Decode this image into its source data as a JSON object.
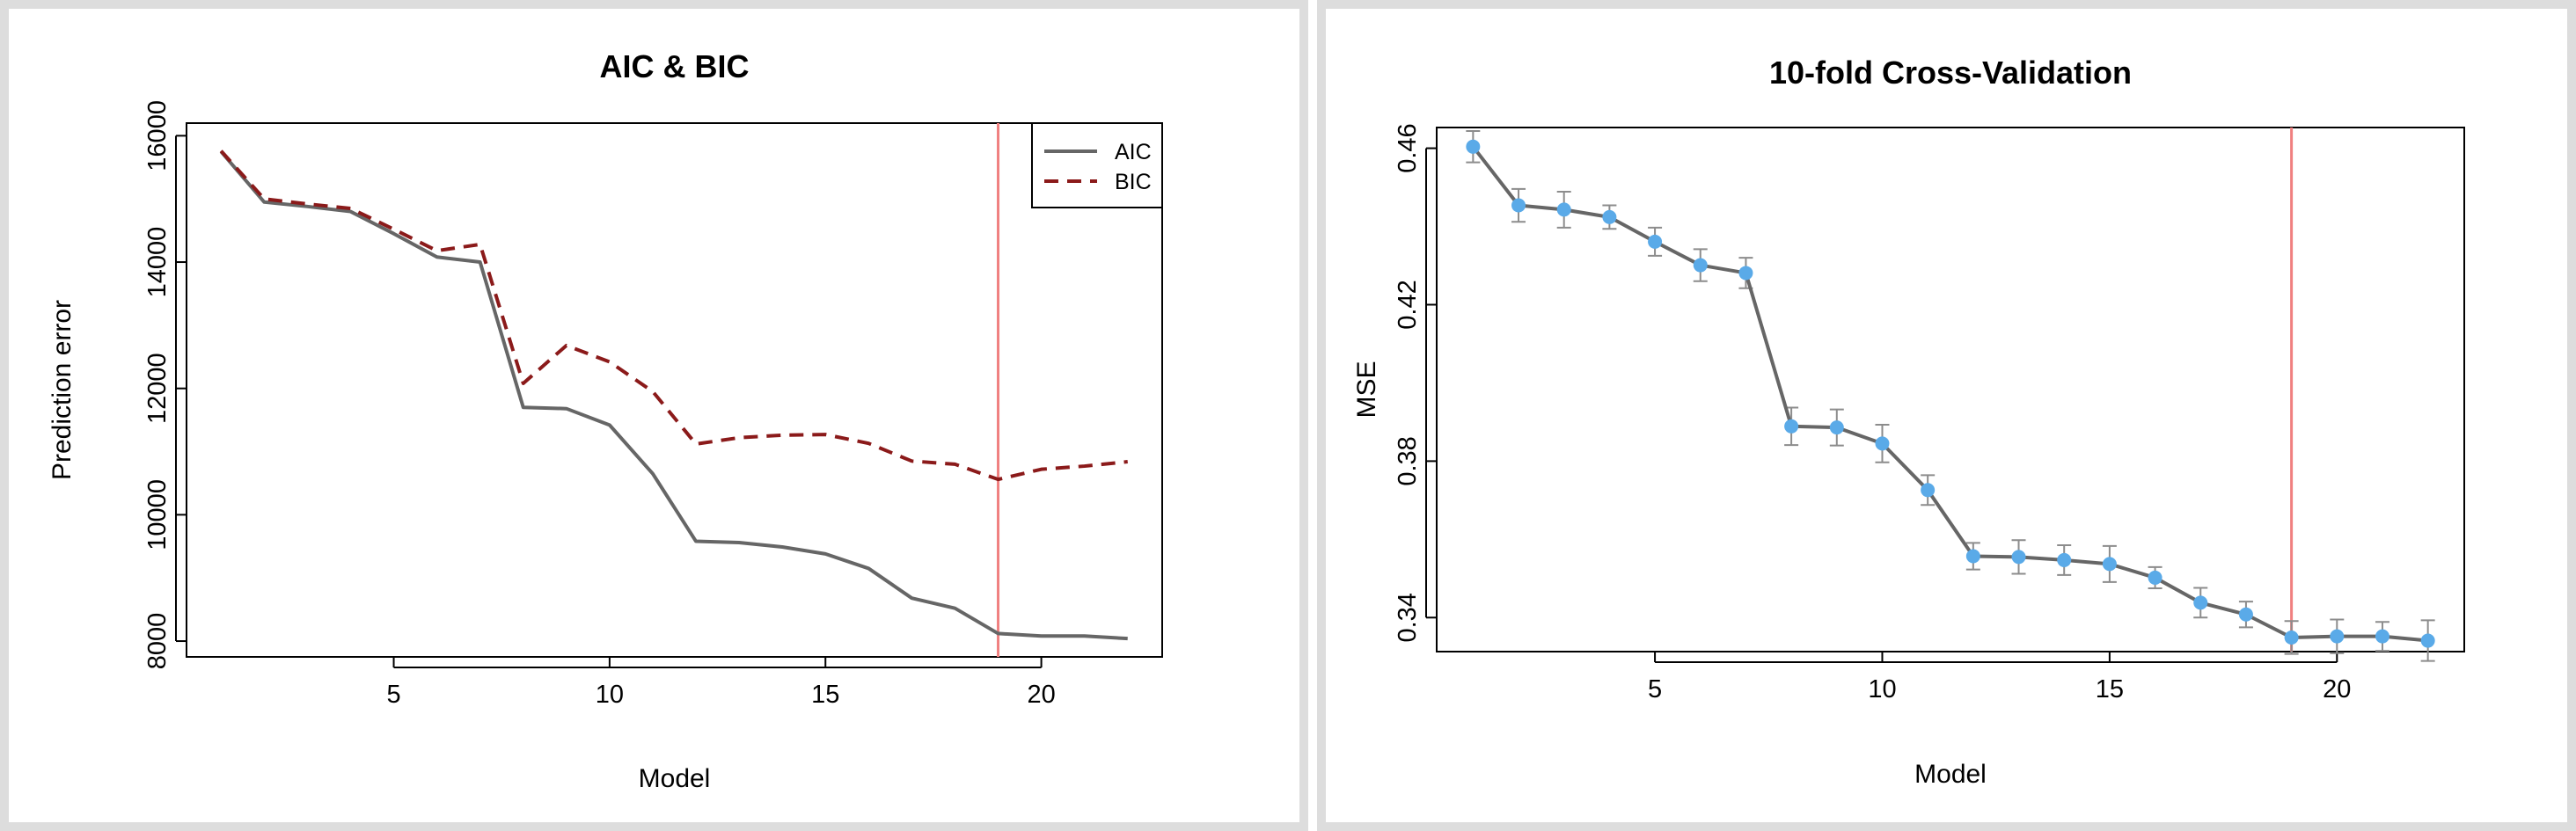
{
  "colors": {
    "aic_line": "#666666",
    "bic_line": "#8b1a1a",
    "cv_line": "#666666",
    "cv_points": "#5aaae8",
    "error_bars": "#8c8c8c",
    "marker_line": "#f08080",
    "frame_border": "#dddddd"
  },
  "chart_data": [
    {
      "type": "line",
      "title": "AIC & BIC",
      "xlabel": "Model",
      "ylabel": "Prediction error",
      "xlim": [
        0.2,
        22.8
      ],
      "ylim": [
        7750,
        16200
      ],
      "x_ticks": [
        5,
        10,
        15,
        20
      ],
      "y_ticks": [
        8000,
        10000,
        12000,
        14000,
        16000
      ],
      "x": [
        1,
        2,
        3,
        4,
        5,
        6,
        7,
        8,
        9,
        10,
        11,
        12,
        13,
        14,
        15,
        16,
        17,
        18,
        19,
        20,
        21,
        22
      ],
      "series": [
        {
          "name": "AIC",
          "style": "solid",
          "values": [
            15750,
            14950,
            14880,
            14800,
            14450,
            14080,
            14000,
            11700,
            11680,
            11420,
            10650,
            9580,
            9560,
            9490,
            9380,
            9150,
            8680,
            8520,
            8120,
            8080,
            8080,
            8040
          ]
        },
        {
          "name": "BIC",
          "style": "dashed",
          "values": [
            15760,
            15000,
            14920,
            14850,
            14520,
            14180,
            14280,
            12080,
            12680,
            12420,
            11950,
            11120,
            11220,
            11260,
            11270,
            11130,
            10850,
            10800,
            10560,
            10720,
            10770,
            10840
          ]
        }
      ],
      "vline_x": 19,
      "legend_position": "top-right",
      "grid": false
    },
    {
      "type": "line",
      "title": "10-fold Cross-Validation",
      "xlabel": "Model",
      "ylabel": "MSE",
      "xlim": [
        0.2,
        22.8
      ],
      "ylim": [
        0.3313,
        0.4653
      ],
      "x_ticks": [
        5,
        10,
        15,
        20
      ],
      "y_ticks": [
        0.34,
        0.38,
        0.42,
        0.46
      ],
      "y_tick_labels": [
        "0.34",
        "0.38",
        "0.42",
        "0.46"
      ],
      "x": [
        1,
        2,
        3,
        4,
        5,
        6,
        7,
        8,
        9,
        10,
        11,
        12,
        13,
        14,
        15,
        16,
        17,
        18,
        19,
        20,
        21,
        22
      ],
      "series": [
        {
          "name": "",
          "style": "solid-with-points",
          "values": [
            0.4604,
            0.4454,
            0.4443,
            0.4424,
            0.4361,
            0.4301,
            0.4281,
            0.3889,
            0.3886,
            0.3845,
            0.3726,
            0.3557,
            0.3555,
            0.3547,
            0.3537,
            0.3502,
            0.3438,
            0.3408,
            0.3349,
            0.3352,
            0.3352,
            0.3341
          ],
          "error": [
            0.004,
            0.0042,
            0.0046,
            0.003,
            0.0036,
            0.0041,
            0.0039,
            0.0048,
            0.0046,
            0.0048,
            0.0038,
            0.0034,
            0.0043,
            0.0038,
            0.0046,
            0.0027,
            0.0038,
            0.0033,
            0.0042,
            0.0043,
            0.0037,
            0.0052
          ]
        }
      ],
      "vline_x": 19,
      "grid": false
    }
  ]
}
